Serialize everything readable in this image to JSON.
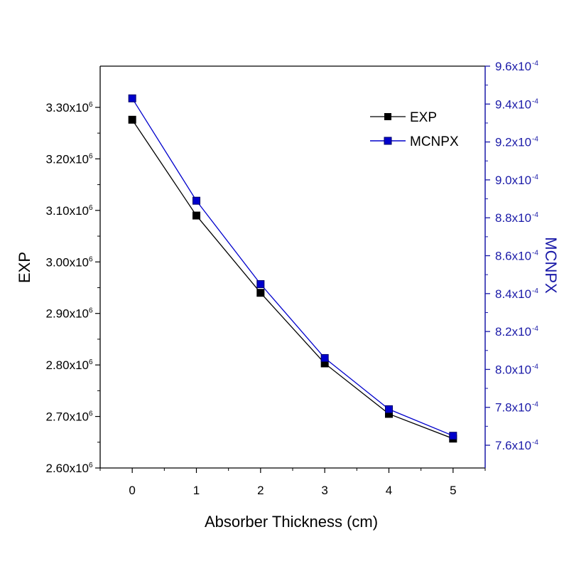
{
  "colors": {
    "exp": "#000000",
    "mcnpx": "#0000cc",
    "right_axis": "#1a1aa8"
  },
  "chart_data": {
    "type": "line",
    "xlabel": "Absorber Thickness (cm)",
    "ylabel_left": "EXP",
    "ylabel_right": "MCNPX",
    "x": [
      0,
      1,
      2,
      3,
      4,
      5
    ],
    "xticks": [
      "0",
      "1",
      "2",
      "3",
      "4",
      "5"
    ],
    "xlim": [
      -0.5,
      5.5
    ],
    "ylim_left": [
      2600000,
      3380000
    ],
    "ylim_right": [
      0.000748,
      0.00096
    ],
    "yticks_left": [
      {
        "value": 2600000,
        "mantissa": "2.60x10",
        "exp": "6"
      },
      {
        "value": 2700000,
        "mantissa": "2.70x10",
        "exp": "6"
      },
      {
        "value": 2800000,
        "mantissa": "2.80x10",
        "exp": "6"
      },
      {
        "value": 2900000,
        "mantissa": "2.90x10",
        "exp": "6"
      },
      {
        "value": 3000000,
        "mantissa": "3.00x10",
        "exp": "6"
      },
      {
        "value": 3100000,
        "mantissa": "3.10x10",
        "exp": "6"
      },
      {
        "value": 3200000,
        "mantissa": "3.20x10",
        "exp": "6"
      },
      {
        "value": 3300000,
        "mantissa": "3.30x10",
        "exp": "6"
      }
    ],
    "yticks_right": [
      {
        "value": 0.00076,
        "mantissa": "7.6x10",
        "exp": "-4"
      },
      {
        "value": 0.00078,
        "mantissa": "7.8x10",
        "exp": "-4"
      },
      {
        "value": 0.0008,
        "mantissa": "8.0x10",
        "exp": "-4"
      },
      {
        "value": 0.00082,
        "mantissa": "8.2x10",
        "exp": "-4"
      },
      {
        "value": 0.00084,
        "mantissa": "8.4x10",
        "exp": "-4"
      },
      {
        "value": 0.00086,
        "mantissa": "8.6x10",
        "exp": "-4"
      },
      {
        "value": 0.00088,
        "mantissa": "8.8x10",
        "exp": "-4"
      },
      {
        "value": 0.0009,
        "mantissa": "9.0x10",
        "exp": "-4"
      },
      {
        "value": 0.00092,
        "mantissa": "9.2x10",
        "exp": "-4"
      },
      {
        "value": 0.00094,
        "mantissa": "9.4x10",
        "exp": "-4"
      },
      {
        "value": 0.00096,
        "mantissa": "9.6x10",
        "exp": "-4"
      }
    ],
    "series": [
      {
        "name": "EXP",
        "axis": "left",
        "values": [
          3276000,
          3090000,
          2940000,
          2803000,
          2705000,
          2657000
        ]
      },
      {
        "name": "MCNPX",
        "axis": "right",
        "values": [
          0.000943,
          0.000889,
          0.000845,
          0.000806,
          0.000779,
          0.000765
        ]
      }
    ],
    "legend": "top-right"
  }
}
